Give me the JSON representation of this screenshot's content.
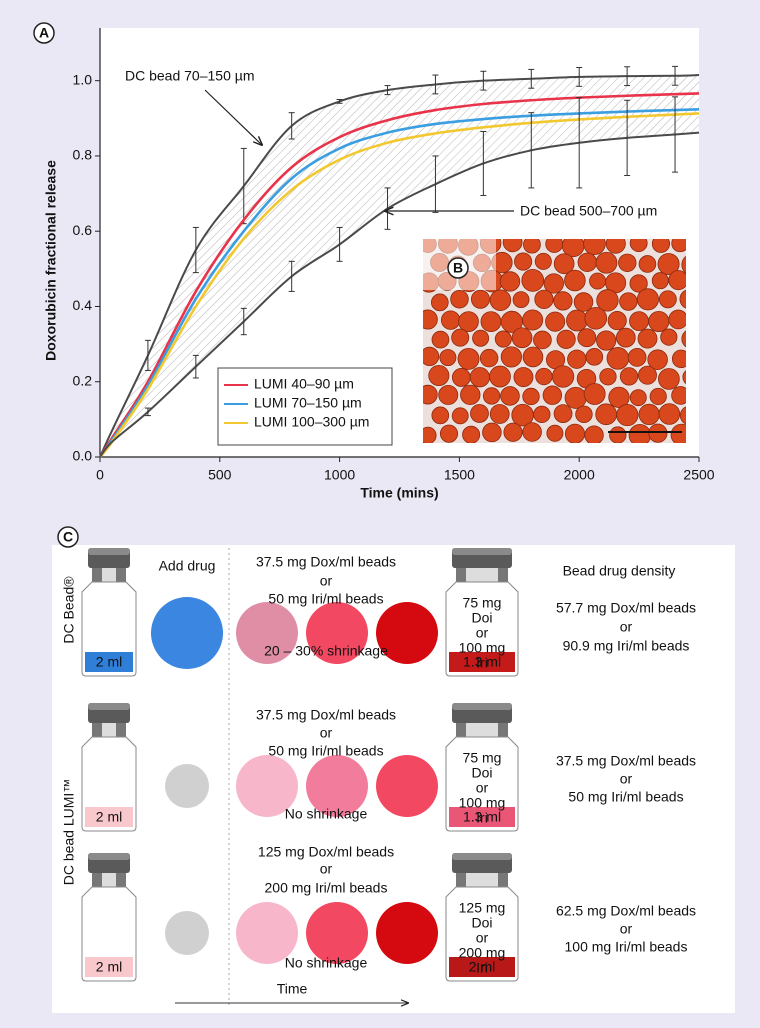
{
  "chart_data": {
    "type": "line",
    "panel_label": "A",
    "inset_label": "B",
    "xlabel": "Time (mins)",
    "ylabel": "Doxorubicin fractional release",
    "x": [
      0,
      50,
      200,
      400,
      600,
      800,
      1000,
      1200,
      1400,
      1600,
      1800,
      2000,
      2200,
      2400,
      2500
    ],
    "xlim": [
      0,
      2500
    ],
    "xticks": [
      0,
      500,
      1000,
      1500,
      2000,
      2500
    ],
    "ylim": [
      0,
      1.14
    ],
    "yticks": [
      {
        "value": 0,
        "label": "0.0"
      },
      0.2,
      0.4,
      0.6,
      0.8,
      {
        "value": 1,
        "label": "1.0"
      }
    ],
    "legend_loc": "lower center",
    "shade_between_gray": true,
    "series": [
      {
        "name": "DC bead 70–150 µm",
        "color": "#4a4a4a",
        "show_in_legend": false,
        "values": [
          0,
          0.07,
          0.27,
          0.55,
          0.72,
          0.88,
          0.945,
          0.975,
          0.99,
          1.0,
          1.005,
          1.01,
          1.012,
          1.013,
          1.015
        ],
        "errors": [
          null,
          null,
          0.04,
          0.06,
          0.1,
          0.035,
          0.005,
          0.012,
          0.025,
          0.025,
          0.025,
          0.025,
          0.025,
          0.025,
          null
        ]
      },
      {
        "name": "LUMI 40–90 µm",
        "color": "#e8334a",
        "show_in_legend": true,
        "values": [
          0,
          0.05,
          0.2,
          0.44,
          0.63,
          0.77,
          0.85,
          0.895,
          0.922,
          0.938,
          0.948,
          0.955,
          0.96,
          0.964,
          0.966
        ]
      },
      {
        "name": "LUMI 70–150 µm",
        "color": "#3a9ee0",
        "show_in_legend": true,
        "values": [
          0,
          0.045,
          0.19,
          0.42,
          0.6,
          0.74,
          0.82,
          0.862,
          0.885,
          0.898,
          0.907,
          0.913,
          0.918,
          0.922,
          0.924
        ]
      },
      {
        "name": "LUMI 100–300 µm",
        "color": "#f2c830",
        "show_in_legend": true,
        "values": [
          0,
          0.04,
          0.18,
          0.4,
          0.58,
          0.71,
          0.79,
          0.835,
          0.86,
          0.876,
          0.888,
          0.897,
          0.904,
          0.91,
          0.913
        ]
      },
      {
        "name": "DC bead 500–700 µm",
        "color": "#4a4a4a",
        "show_in_legend": false,
        "values": [
          0,
          0.04,
          0.12,
          0.24,
          0.36,
          0.48,
          0.565,
          0.66,
          0.725,
          0.78,
          0.815,
          0.835,
          0.848,
          0.857,
          0.862
        ],
        "errors": [
          null,
          null,
          0.01,
          0.03,
          0.035,
          0.04,
          0.045,
          0.055,
          0.075,
          0.085,
          0.1,
          0.12,
          0.1,
          0.1,
          null
        ]
      }
    ]
  },
  "panel_c": {
    "label": "C",
    "add_drug_header": "Add drug",
    "density_header": "Bead drug density",
    "time_label": "Time",
    "product_labels": [
      "DC Bead®",
      "DC bead LUMI™"
    ],
    "rows": [
      {
        "start_volume": "2 ml",
        "start_fill": "#2f7fd8",
        "add_color": "#3a86e0",
        "bead_colors": [
          "#e08ea6",
          "#f24862",
          "#d40a10"
        ],
        "loading": [
          "37.5 mg Dox/ml beads",
          "or",
          "50 mg Iri/ml beads"
        ],
        "shrinkage": "20 – 30% shrinkage",
        "end_vial_text": [
          "75 mg",
          "Doi",
          "or",
          "100 mg",
          "Iri"
        ],
        "end_volume": "1.3 ml",
        "end_fill": "#c41a1a",
        "density": [
          "57.7 mg Dox/ml beads",
          "or",
          "90.9 mg Iri/ml beads"
        ]
      },
      {
        "start_volume": "2 ml",
        "start_fill": "#f8c8cc",
        "add_color": "#d0d0d0",
        "bead_colors": [
          "#f8b6ca",
          "#f27c9c",
          "#f24862"
        ],
        "loading": [
          "37.5 mg Dox/ml beads",
          "or",
          "50 mg Iri/ml beads"
        ],
        "shrinkage": "No shrinkage",
        "end_vial_text": [
          "75 mg",
          "Doi",
          "or",
          "100 mg",
          "Iri"
        ],
        "end_volume": "1.3 ml",
        "end_fill": "#ea5676",
        "density": [
          "37.5 mg Dox/ml beads",
          "or",
          "50 mg Iri/ml beads"
        ]
      },
      {
        "start_volume": "2 ml",
        "start_fill": "#f8c8cc",
        "add_color": "#d0d0d0",
        "bead_colors": [
          "#f8b6ca",
          "#f24862",
          "#d40a10"
        ],
        "loading": [
          "125 mg Dox/ml beads",
          "or",
          "200 mg Iri/ml beads"
        ],
        "shrinkage": "No shrinkage",
        "end_vial_text": [
          "125 mg",
          "Doi",
          "or",
          "200 mg",
          "Iri"
        ],
        "end_volume": "2 ml",
        "end_fill": "#b81818",
        "density": [
          "62.5 mg Dox/ml beads",
          "or",
          "100 mg Iri/ml beads"
        ]
      }
    ]
  }
}
